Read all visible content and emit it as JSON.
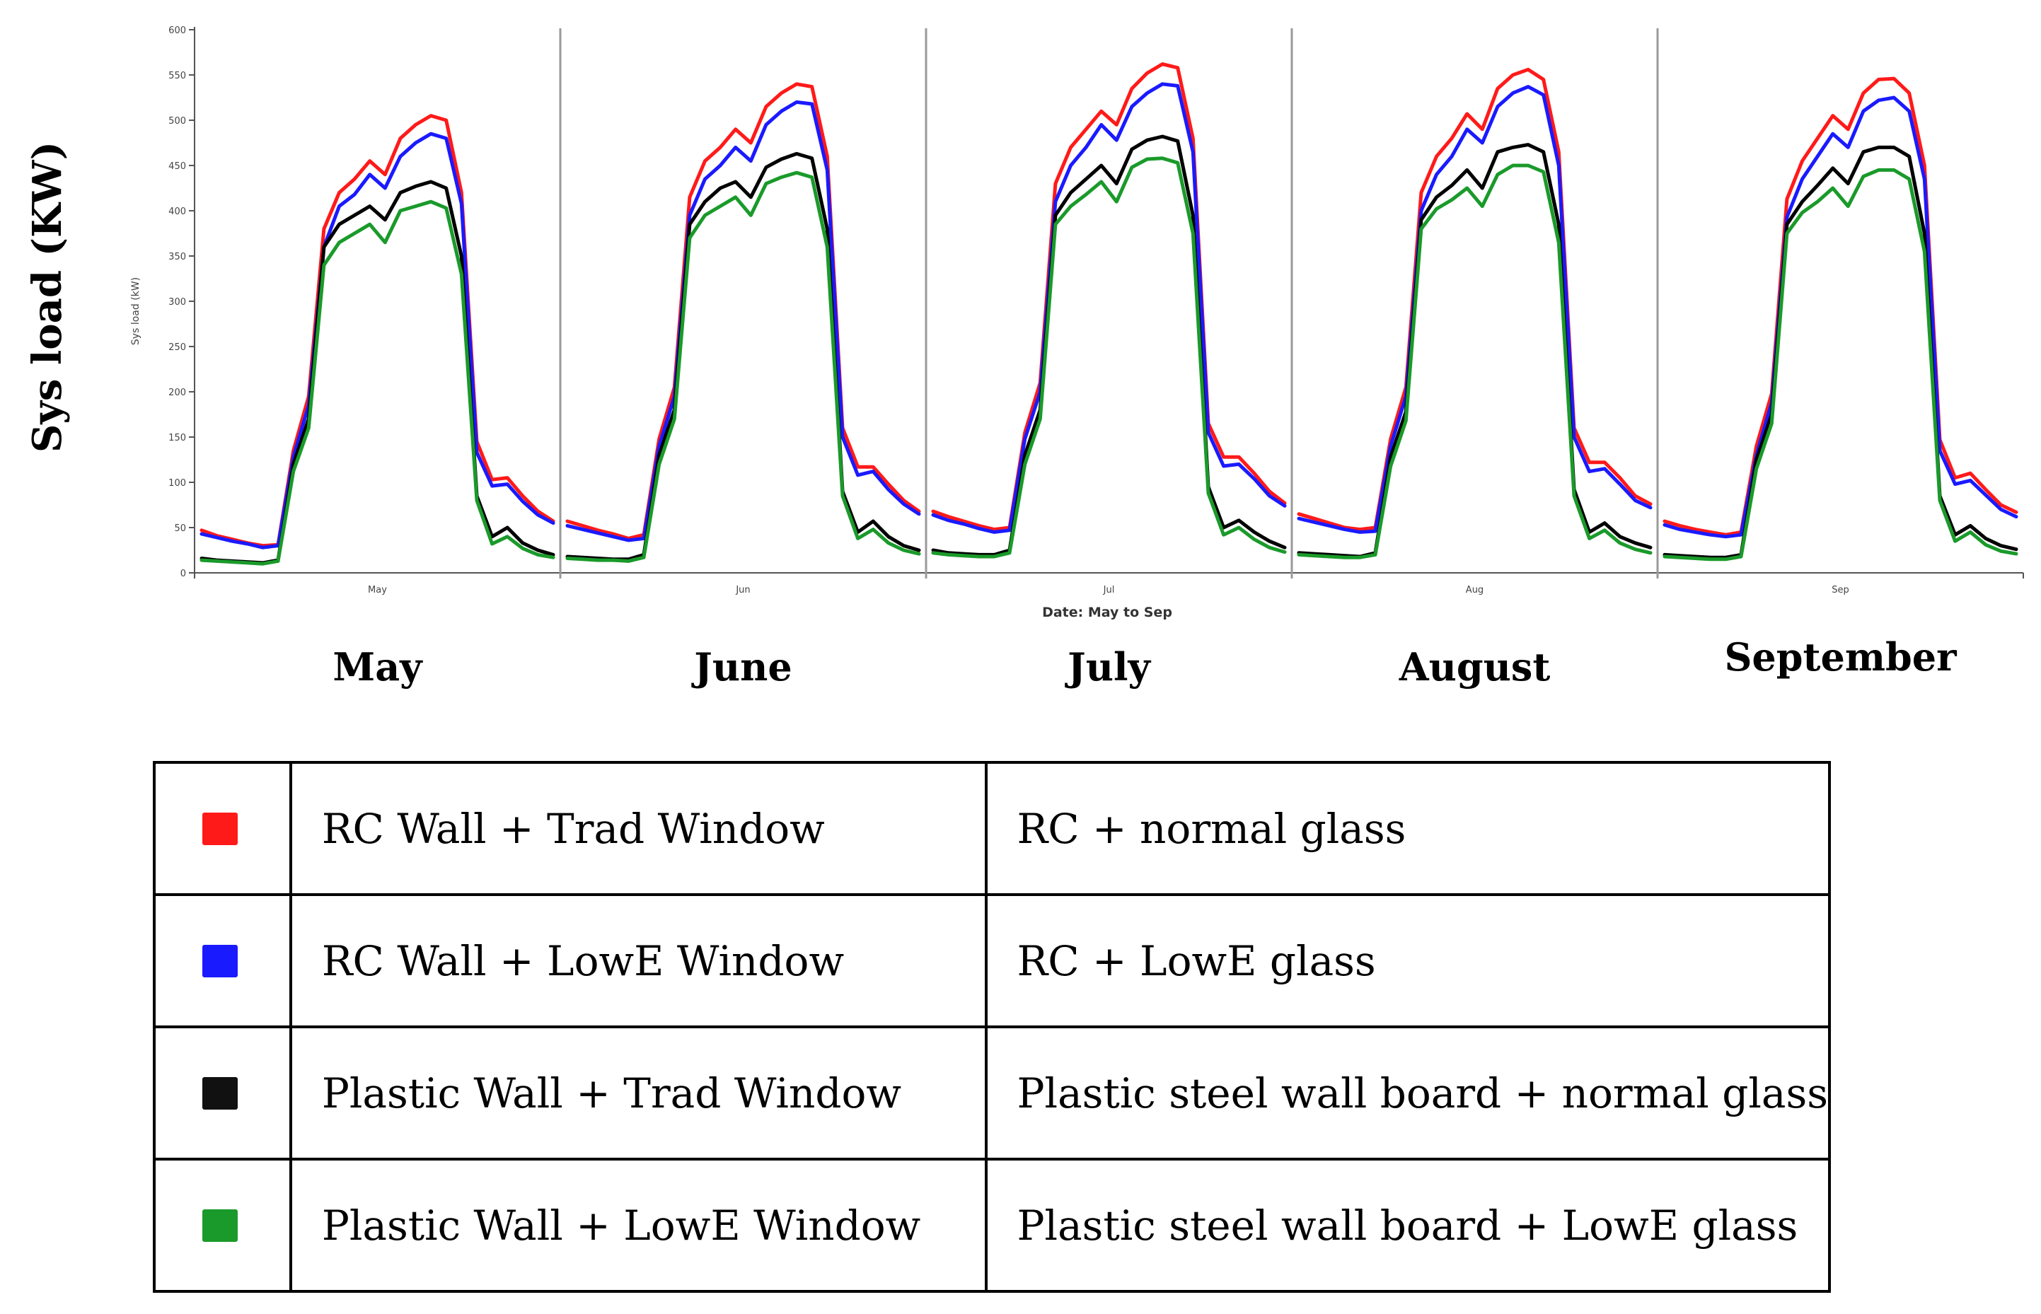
{
  "chart_data": {
    "type": "line",
    "ylabel_inner": "Sys load (kW)",
    "ylabel_outer": "Sys load (KW)",
    "xlabel": "Date: May to Sep",
    "ylim": [
      0,
      600
    ],
    "yticks": [
      0,
      50,
      100,
      150,
      200,
      250,
      300,
      350,
      400,
      450,
      500,
      550,
      600
    ],
    "hours_per_day": 24,
    "months": [
      {
        "tick": "May",
        "caption": "May"
      },
      {
        "tick": "Jun",
        "caption": "June"
      },
      {
        "tick": "Jul",
        "caption": "July"
      },
      {
        "tick": "Aug",
        "caption": "August"
      },
      {
        "tick": "Sep",
        "caption": "September"
      }
    ],
    "series": [
      {
        "name": "RC Wall + Trad Window",
        "color": "#ff1a1a",
        "values": [
          [
            47,
            41,
            37,
            33,
            30,
            31,
            135,
            195,
            380,
            420,
            435,
            455,
            440,
            480,
            495,
            505,
            500,
            420,
            145,
            103,
            105,
            85,
            68,
            57
          ],
          [
            57,
            52,
            47,
            43,
            38,
            42,
            148,
            205,
            415,
            455,
            470,
            490,
            475,
            515,
            530,
            540,
            537,
            460,
            160,
            117,
            117,
            98,
            80,
            68
          ],
          [
            68,
            62,
            57,
            52,
            48,
            50,
            155,
            210,
            430,
            470,
            490,
            510,
            495,
            535,
            552,
            562,
            558,
            480,
            165,
            128,
            128,
            110,
            90,
            77
          ],
          [
            65,
            60,
            55,
            50,
            48,
            50,
            148,
            205,
            420,
            460,
            480,
            507,
            490,
            535,
            550,
            556,
            545,
            465,
            160,
            122,
            122,
            105,
            85,
            76
          ],
          [
            57,
            52,
            48,
            45,
            42,
            45,
            140,
            198,
            413,
            455,
            480,
            505,
            490,
            530,
            545,
            546,
            530,
            450,
            147,
            105,
            110,
            92,
            75,
            67
          ]
        ]
      },
      {
        "name": "RC Wall + LowE Window",
        "color": "#1a1aff",
        "values": [
          [
            43,
            39,
            35,
            32,
            28,
            30,
            128,
            185,
            360,
            405,
            418,
            440,
            425,
            460,
            475,
            485,
            480,
            408,
            133,
            96,
            98,
            79,
            64,
            55
          ],
          [
            52,
            48,
            44,
            40,
            36,
            38,
            140,
            195,
            395,
            435,
            450,
            470,
            455,
            495,
            510,
            520,
            518,
            445,
            150,
            108,
            112,
            92,
            76,
            65
          ],
          [
            64,
            58,
            54,
            49,
            45,
            47,
            148,
            200,
            410,
            450,
            470,
            495,
            478,
            515,
            530,
            540,
            538,
            465,
            155,
            118,
            120,
            104,
            85,
            74
          ],
          [
            60,
            56,
            52,
            48,
            45,
            46,
            140,
            195,
            400,
            440,
            460,
            490,
            475,
            515,
            530,
            537,
            528,
            450,
            150,
            112,
            115,
            98,
            80,
            72
          ],
          [
            53,
            48,
            45,
            42,
            40,
            42,
            130,
            188,
            393,
            435,
            460,
            485,
            470,
            510,
            522,
            525,
            510,
            435,
            135,
            98,
            102,
            86,
            70,
            62
          ]
        ]
      },
      {
        "name": "Plastic Wall + Trad Window",
        "color": "#000000",
        "values": [
          [
            16,
            14,
            13,
            12,
            11,
            14,
            120,
            170,
            360,
            385,
            395,
            405,
            390,
            420,
            427,
            432,
            425,
            350,
            85,
            40,
            50,
            33,
            25,
            20
          ],
          [
            18,
            17,
            16,
            15,
            15,
            20,
            130,
            180,
            385,
            410,
            425,
            432,
            415,
            448,
            457,
            463,
            458,
            380,
            90,
            45,
            57,
            40,
            30,
            25
          ],
          [
            25,
            22,
            21,
            20,
            20,
            25,
            130,
            180,
            395,
            420,
            435,
            450,
            430,
            468,
            478,
            482,
            477,
            395,
            95,
            50,
            58,
            45,
            35,
            28
          ],
          [
            22,
            21,
            20,
            19,
            18,
            22,
            128,
            178,
            390,
            415,
            428,
            445,
            425,
            465,
            470,
            473,
            465,
            385,
            92,
            45,
            55,
            40,
            33,
            28
          ],
          [
            20,
            19,
            18,
            17,
            17,
            20,
            125,
            175,
            385,
            410,
            428,
            447,
            430,
            465,
            470,
            470,
            460,
            375,
            85,
            42,
            52,
            38,
            30,
            26
          ]
        ]
      },
      {
        "name": "Plastic Wall + LowE Window",
        "color": "#1a9a2a",
        "values": [
          [
            14,
            13,
            12,
            11,
            10,
            13,
            112,
            160,
            340,
            365,
            375,
            385,
            365,
            400,
            405,
            410,
            403,
            330,
            80,
            32,
            40,
            27,
            20,
            17
          ],
          [
            16,
            15,
            14,
            14,
            13,
            17,
            120,
            170,
            370,
            395,
            405,
            415,
            395,
            430,
            437,
            442,
            437,
            360,
            85,
            38,
            48,
            33,
            25,
            21
          ],
          [
            22,
            20,
            19,
            18,
            18,
            22,
            120,
            170,
            385,
            405,
            418,
            432,
            410,
            448,
            457,
            458,
            453,
            375,
            88,
            42,
            50,
            37,
            28,
            23
          ],
          [
            20,
            19,
            18,
            17,
            17,
            20,
            118,
            168,
            380,
            402,
            412,
            425,
            405,
            440,
            450,
            450,
            443,
            365,
            85,
            38,
            47,
            33,
            26,
            22
          ],
          [
            18,
            17,
            16,
            15,
            15,
            18,
            115,
            165,
            375,
            398,
            410,
            425,
            405,
            438,
            445,
            445,
            435,
            355,
            80,
            35,
            45,
            31,
            24,
            21
          ]
        ]
      }
    ]
  },
  "legend_table": {
    "rows": [
      {
        "color": "#ff1a1a",
        "name": "RC Wall + Trad Window",
        "description": "RC + normal glass"
      },
      {
        "color": "#1a1aff",
        "name": "RC Wall + LowE Window",
        "description": "RC + LowE glass"
      },
      {
        "color": "#111111",
        "name": "Plastic Wall + Trad Window",
        "description": "Plastic steel wall board + normal glass"
      },
      {
        "color": "#1a9a2a",
        "name": "Plastic Wall + LowE Window",
        "description": "Plastic steel wall board + LowE glass"
      }
    ]
  }
}
